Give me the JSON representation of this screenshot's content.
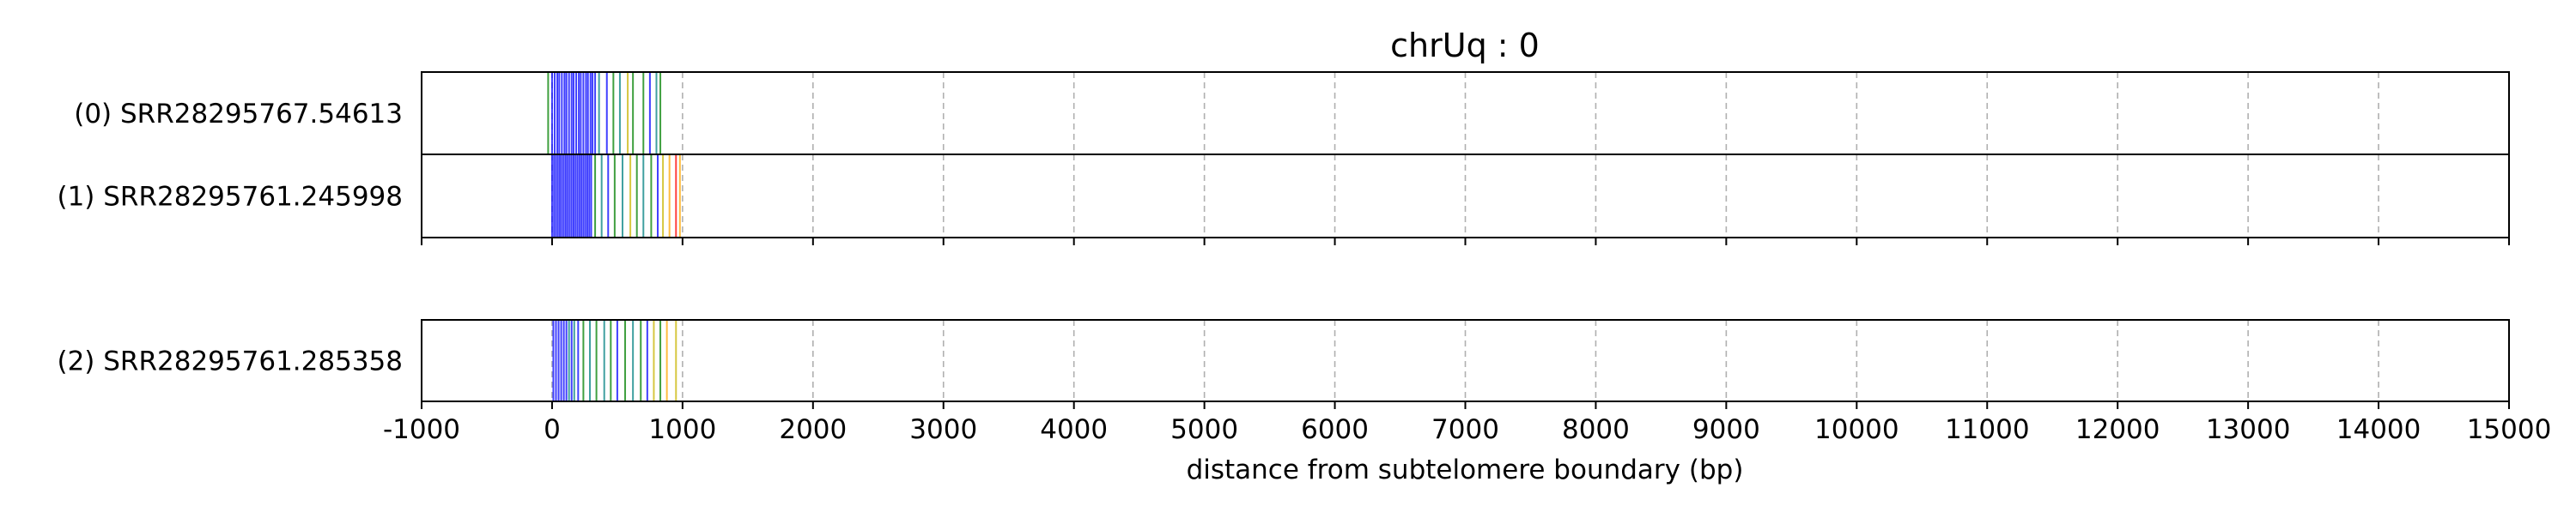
{
  "chart_data": {
    "type": "read-track",
    "title": "chrUq : 0",
    "xlabel": "distance from subtelomere boundary (bp)",
    "xlim": [
      -1000,
      15000
    ],
    "xticks": [
      -1000,
      0,
      1000,
      2000,
      3000,
      4000,
      5000,
      6000,
      7000,
      8000,
      9000,
      10000,
      11000,
      12000,
      13000,
      14000,
      15000
    ],
    "xtick_labels": [
      "-1000",
      "0",
      "1000",
      "2000",
      "3000",
      "4000",
      "5000",
      "6000",
      "7000",
      "8000",
      "9000",
      "10000",
      "11000",
      "12000",
      "13000",
      "14000",
      "15000"
    ],
    "vertical_grid": true,
    "colors": {
      "blue": "#0000ff",
      "green": "#008000",
      "teal": "#008080",
      "orange": "#ffa500",
      "red": "#ff0000",
      "gold": "#c8b400",
      "grid": "#b0b0b0"
    },
    "reads": [
      {
        "label": "(0) SRR28295767.54613",
        "marks": [
          {
            "x": -30,
            "color": "green"
          },
          {
            "x": 0,
            "color": "blue"
          },
          {
            "x": 20,
            "color": "blue"
          },
          {
            "x": 40,
            "color": "blue"
          },
          {
            "x": 55,
            "color": "blue"
          },
          {
            "x": 75,
            "color": "blue"
          },
          {
            "x": 95,
            "color": "blue"
          },
          {
            "x": 110,
            "color": "blue"
          },
          {
            "x": 130,
            "color": "blue"
          },
          {
            "x": 150,
            "color": "blue"
          },
          {
            "x": 165,
            "color": "blue"
          },
          {
            "x": 185,
            "color": "blue"
          },
          {
            "x": 205,
            "color": "blue"
          },
          {
            "x": 220,
            "color": "blue"
          },
          {
            "x": 240,
            "color": "blue"
          },
          {
            "x": 260,
            "color": "blue"
          },
          {
            "x": 275,
            "color": "blue"
          },
          {
            "x": 295,
            "color": "blue"
          },
          {
            "x": 310,
            "color": "blue"
          },
          {
            "x": 330,
            "color": "blue"
          },
          {
            "x": 360,
            "color": "teal"
          },
          {
            "x": 420,
            "color": "blue"
          },
          {
            "x": 470,
            "color": "green"
          },
          {
            "x": 520,
            "color": "teal"
          },
          {
            "x": 580,
            "color": "gold"
          },
          {
            "x": 620,
            "color": "green"
          },
          {
            "x": 700,
            "color": "green"
          },
          {
            "x": 750,
            "color": "blue"
          },
          {
            "x": 800,
            "color": "teal"
          },
          {
            "x": 830,
            "color": "green"
          }
        ]
      },
      {
        "label": "(1) SRR28295761.245998",
        "marks": [
          {
            "x": 0,
            "color": "blue"
          },
          {
            "x": 15,
            "color": "blue"
          },
          {
            "x": 30,
            "color": "blue"
          },
          {
            "x": 45,
            "color": "blue"
          },
          {
            "x": 60,
            "color": "blue"
          },
          {
            "x": 75,
            "color": "blue"
          },
          {
            "x": 90,
            "color": "blue"
          },
          {
            "x": 105,
            "color": "blue"
          },
          {
            "x": 120,
            "color": "blue"
          },
          {
            "x": 135,
            "color": "blue"
          },
          {
            "x": 150,
            "color": "blue"
          },
          {
            "x": 165,
            "color": "blue"
          },
          {
            "x": 180,
            "color": "blue"
          },
          {
            "x": 195,
            "color": "blue"
          },
          {
            "x": 210,
            "color": "blue"
          },
          {
            "x": 225,
            "color": "blue"
          },
          {
            "x": 240,
            "color": "blue"
          },
          {
            "x": 255,
            "color": "blue"
          },
          {
            "x": 270,
            "color": "blue"
          },
          {
            "x": 285,
            "color": "blue"
          },
          {
            "x": 300,
            "color": "blue"
          },
          {
            "x": 330,
            "color": "green"
          },
          {
            "x": 380,
            "color": "teal"
          },
          {
            "x": 430,
            "color": "blue"
          },
          {
            "x": 480,
            "color": "green"
          },
          {
            "x": 540,
            "color": "teal"
          },
          {
            "x": 600,
            "color": "gold"
          },
          {
            "x": 650,
            "color": "green"
          },
          {
            "x": 700,
            "color": "teal"
          },
          {
            "x": 760,
            "color": "green"
          },
          {
            "x": 810,
            "color": "blue"
          },
          {
            "x": 850,
            "color": "gold"
          },
          {
            "x": 900,
            "color": "orange"
          },
          {
            "x": 950,
            "color": "red"
          },
          {
            "x": 980,
            "color": "orange"
          }
        ]
      },
      {
        "label": "(2) SRR28295761.285358",
        "marks": [
          {
            "x": 10,
            "color": "blue"
          },
          {
            "x": 30,
            "color": "blue"
          },
          {
            "x": 50,
            "color": "blue"
          },
          {
            "x": 70,
            "color": "blue"
          },
          {
            "x": 90,
            "color": "blue"
          },
          {
            "x": 110,
            "color": "blue"
          },
          {
            "x": 130,
            "color": "teal"
          },
          {
            "x": 150,
            "color": "blue"
          },
          {
            "x": 170,
            "color": "teal"
          },
          {
            "x": 200,
            "color": "blue"
          },
          {
            "x": 240,
            "color": "green"
          },
          {
            "x": 290,
            "color": "teal"
          },
          {
            "x": 340,
            "color": "green"
          },
          {
            "x": 400,
            "color": "teal"
          },
          {
            "x": 450,
            "color": "green"
          },
          {
            "x": 500,
            "color": "blue"
          },
          {
            "x": 560,
            "color": "green"
          },
          {
            "x": 620,
            "color": "teal"
          },
          {
            "x": 680,
            "color": "green"
          },
          {
            "x": 730,
            "color": "blue"
          },
          {
            "x": 780,
            "color": "gold"
          },
          {
            "x": 830,
            "color": "green"
          },
          {
            "x": 880,
            "color": "orange"
          },
          {
            "x": 950,
            "color": "gold"
          }
        ]
      }
    ]
  }
}
